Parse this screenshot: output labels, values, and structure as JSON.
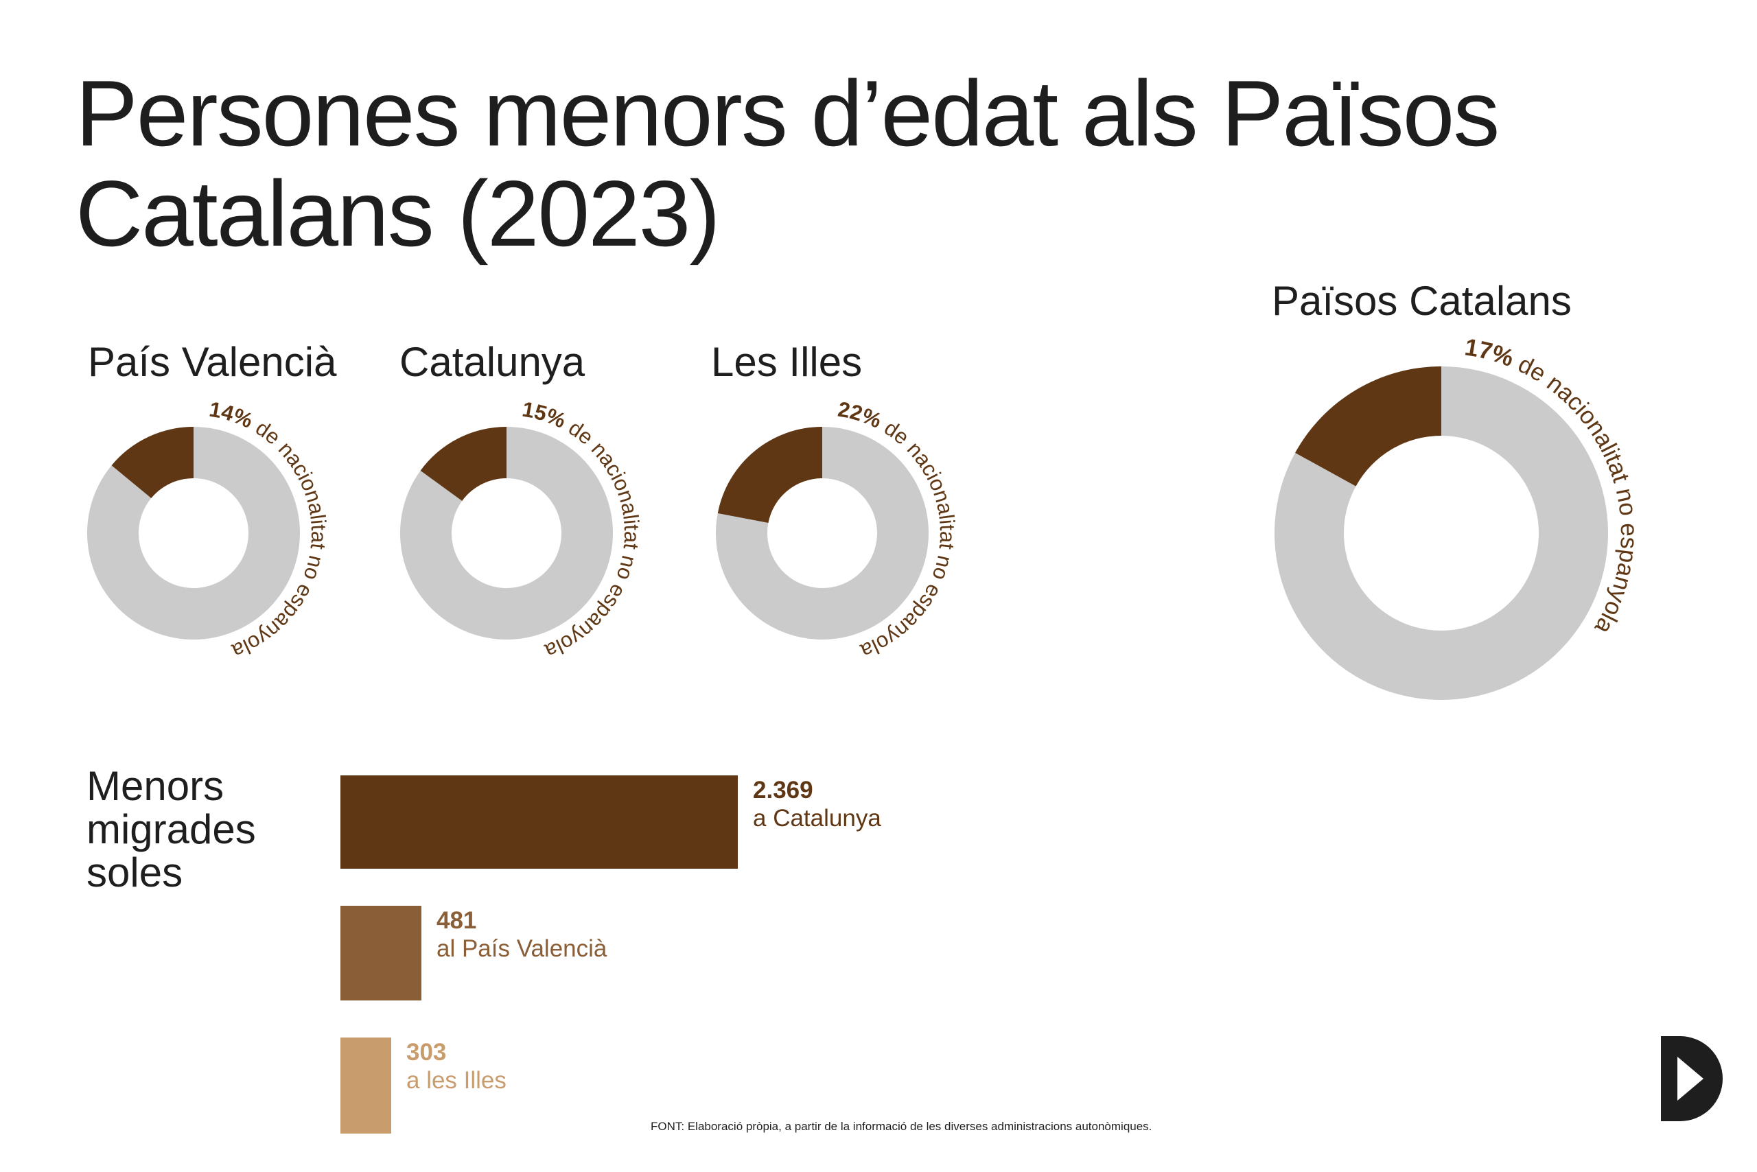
{
  "title": "Persones menors d’edat als Països Catalans (2023)",
  "colors": {
    "accent": "#5f3714",
    "ring": "#cbcbcb",
    "bar_catalunya": "#5f3714",
    "bar_valencia": "#8a5f38",
    "bar_illes": "#c99c6e",
    "text": "#1e1e1e"
  },
  "chart_data": [
    {
      "type": "pie",
      "variant": "donut",
      "title": "País Valencià",
      "values": [
        14,
        86
      ],
      "annotation": {
        "pct": "14%",
        "text": "de nacionalitat no espanyola"
      }
    },
    {
      "type": "pie",
      "variant": "donut",
      "title": "Catalunya",
      "values": [
        15,
        85
      ],
      "annotation": {
        "pct": "15%",
        "text": "de nacionalitat no espanyola"
      }
    },
    {
      "type": "pie",
      "variant": "donut",
      "title": "Les Illes",
      "values": [
        22,
        78
      ],
      "annotation": {
        "pct": "22%",
        "text": "de nacionalitat no espanyola"
      }
    },
    {
      "type": "pie",
      "variant": "donut",
      "title": "Països Catalans",
      "values": [
        17,
        83
      ],
      "annotation": {
        "pct": "17%",
        "text": "de nacionalitat no espanyola"
      }
    },
    {
      "type": "bar",
      "orientation": "horizontal",
      "title": "Menors migrades soles",
      "title_lines": [
        "Menors",
        "migrades",
        "soles"
      ],
      "categories": [
        "a Catalunya",
        "al País Valencià",
        "a les Illes"
      ],
      "values": [
        2369,
        481,
        303
      ],
      "value_labels": [
        "2.369",
        "481",
        "303"
      ]
    }
  ],
  "source": "FONT: Elaboració pròpia, a partir de la informació de les diverses administracions autonòmiques.",
  "logo_icon": "play-d-logo-icon"
}
